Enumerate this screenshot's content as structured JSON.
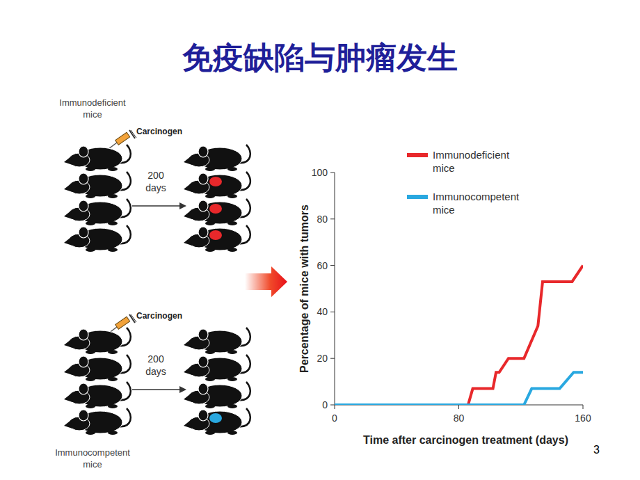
{
  "slide": {
    "title": "免疫缺陷与肿瘤发生",
    "page": "3"
  },
  "diagram": {
    "groups": [
      {
        "label": "Immunodeficient mice",
        "injection": "Carcinogen",
        "duration": "200 days",
        "mice": 4,
        "mice_with_tumors": 3,
        "color": "#e8282b"
      },
      {
        "label": "Immunocompetent mice",
        "injection": "Carcinogen",
        "duration": "200 days",
        "mice": 4,
        "mice_with_tumors": 1,
        "color": "#29a8e0"
      }
    ]
  },
  "chart_data": {
    "type": "line",
    "xlabel": "Time after carcinogen treatment (days)",
    "ylabel": "Percentage of mice with tumors",
    "xlim": [
      0,
      160
    ],
    "xticks": [
      0,
      80,
      160
    ],
    "ylim": [
      0,
      100
    ],
    "yticks": [
      0,
      20,
      40,
      60,
      80,
      100
    ],
    "grid": false,
    "legend": "top-right",
    "series": [
      {
        "name": "Immunodeficient mice",
        "color": "#e8282b",
        "x": [
          0,
          86,
          89,
          102,
          104,
          106,
          112,
          122,
          131,
          134,
          153,
          160
        ],
        "values": [
          0,
          0,
          7,
          7,
          14,
          14,
          20,
          20,
          34,
          53,
          53,
          60
        ]
      },
      {
        "name": "Immunocompetent mice",
        "color": "#29a8e0",
        "x": [
          0,
          122,
          127,
          145,
          154,
          160
        ],
        "values": [
          0,
          0,
          7,
          7,
          14,
          14
        ]
      }
    ]
  }
}
